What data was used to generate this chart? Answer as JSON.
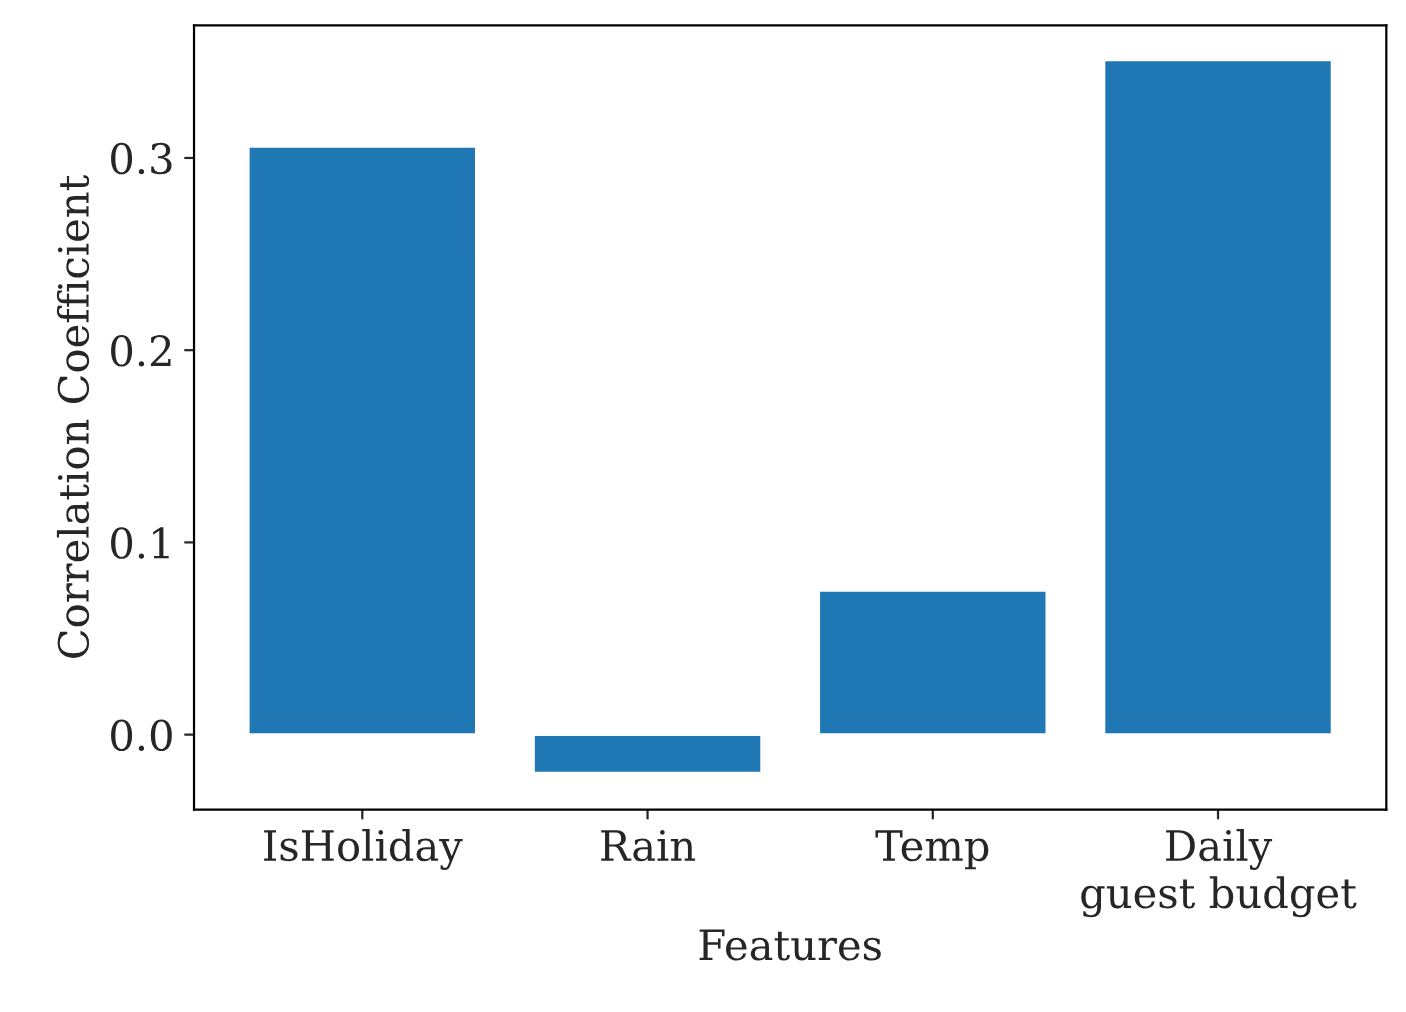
{
  "chart_data": {
    "type": "bar",
    "xlabel": "Features",
    "ylabel": "Correlation Coefficient",
    "categories": [
      "IsHoliday",
      "Rain",
      "Temp",
      "Daily\nguest budget"
    ],
    "values": [
      0.306,
      -0.02,
      0.075,
      0.351
    ],
    "color": "#1f77b4",
    "ylim": [
      -0.039,
      0.369
    ],
    "yticks": [
      {
        "value": 0.0,
        "label": "0.0"
      },
      {
        "value": 0.1,
        "label": "0.1"
      },
      {
        "value": 0.2,
        "label": "0.2"
      },
      {
        "value": 0.3,
        "label": "0.3"
      }
    ],
    "grid": false,
    "legend": false
  }
}
